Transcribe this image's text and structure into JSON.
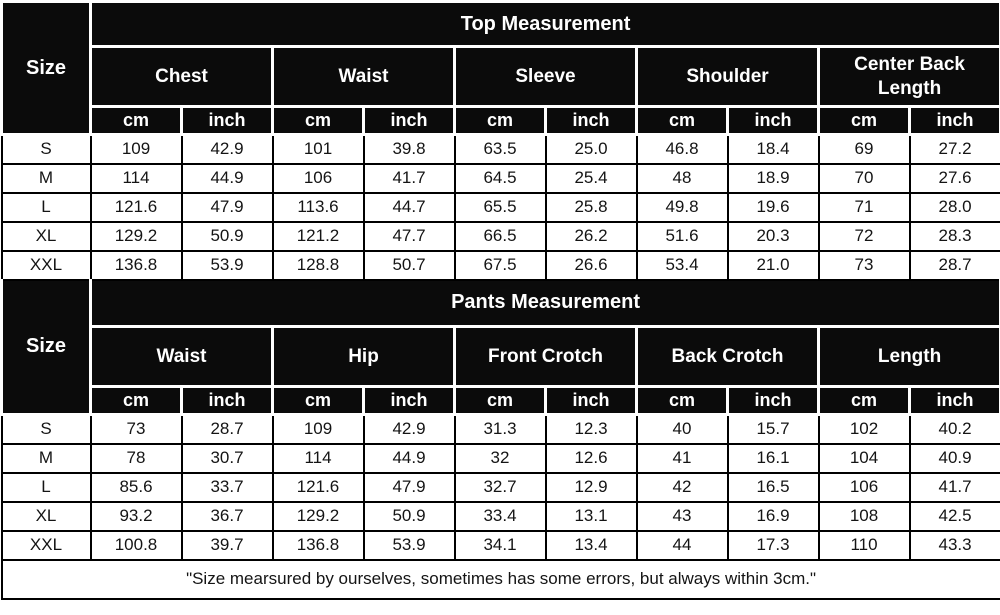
{
  "units": {
    "cm": "cm",
    "inch": "inch"
  },
  "sections": [
    {
      "title": "Top Measurement",
      "size_label": "Size",
      "groups": [
        "Chest",
        "Waist",
        "Sleeve",
        "Shoulder",
        "Center Back Length"
      ],
      "rows": [
        {
          "size": "S",
          "values": [
            "109",
            "42.9",
            "101",
            "39.8",
            "63.5",
            "25.0",
            "46.8",
            "18.4",
            "69",
            "27.2"
          ]
        },
        {
          "size": "M",
          "values": [
            "114",
            "44.9",
            "106",
            "41.7",
            "64.5",
            "25.4",
            "48",
            "18.9",
            "70",
            "27.6"
          ]
        },
        {
          "size": "L",
          "values": [
            "121.6",
            "47.9",
            "113.6",
            "44.7",
            "65.5",
            "25.8",
            "49.8",
            "19.6",
            "71",
            "28.0"
          ]
        },
        {
          "size": "XL",
          "values": [
            "129.2",
            "50.9",
            "121.2",
            "47.7",
            "66.5",
            "26.2",
            "51.6",
            "20.3",
            "72",
            "28.3"
          ]
        },
        {
          "size": "XXL",
          "values": [
            "136.8",
            "53.9",
            "128.8",
            "50.7",
            "67.5",
            "26.6",
            "53.4",
            "21.0",
            "73",
            "28.7"
          ]
        }
      ]
    },
    {
      "title": "Pants Measurement",
      "size_label": "Size",
      "groups": [
        "Waist",
        "Hip",
        "Front Crotch",
        "Back Crotch",
        "Length"
      ],
      "rows": [
        {
          "size": "S",
          "values": [
            "73",
            "28.7",
            "109",
            "42.9",
            "31.3",
            "12.3",
            "40",
            "15.7",
            "102",
            "40.2"
          ]
        },
        {
          "size": "M",
          "values": [
            "78",
            "30.7",
            "114",
            "44.9",
            "32",
            "12.6",
            "41",
            "16.1",
            "104",
            "40.9"
          ]
        },
        {
          "size": "L",
          "values": [
            "85.6",
            "33.7",
            "121.6",
            "47.9",
            "32.7",
            "12.9",
            "42",
            "16.5",
            "106",
            "41.7"
          ]
        },
        {
          "size": "XL",
          "values": [
            "93.2",
            "36.7",
            "129.2",
            "50.9",
            "33.4",
            "13.1",
            "43",
            "16.9",
            "108",
            "42.5"
          ]
        },
        {
          "size": "XXL",
          "values": [
            "100.8",
            "39.7",
            "136.8",
            "53.9",
            "34.1",
            "13.4",
            "44",
            "17.3",
            "110",
            "43.3"
          ]
        }
      ]
    }
  ],
  "footer": {
    "note": "\"Size mearsured by ourselves, sometimes has some errors, but always within 3cm.\""
  },
  "colors": {
    "header_bg": "#0b0b0b",
    "header_text": "#ffffff",
    "header_grid": "#ffffff",
    "cell_bg": "#ffffff",
    "cell_text": "#141414",
    "cell_grid": "#000000"
  },
  "chart_data": [
    {
      "type": "table",
      "title": "Top Measurement",
      "columns": [
        "Size",
        "Chest cm",
        "Chest inch",
        "Waist cm",
        "Waist inch",
        "Sleeve cm",
        "Sleeve inch",
        "Shoulder cm",
        "Shoulder inch",
        "Center Back Length cm",
        "Center Back Length inch"
      ],
      "rows": [
        [
          "S",
          109,
          42.9,
          101,
          39.8,
          63.5,
          25.0,
          46.8,
          18.4,
          69,
          27.2
        ],
        [
          "M",
          114,
          44.9,
          106,
          41.7,
          64.5,
          25.4,
          48,
          18.9,
          70,
          27.6
        ],
        [
          "L",
          121.6,
          47.9,
          113.6,
          44.7,
          65.5,
          25.8,
          49.8,
          19.6,
          71,
          28.0
        ],
        [
          "XL",
          129.2,
          50.9,
          121.2,
          47.7,
          66.5,
          26.2,
          51.6,
          20.3,
          72,
          28.3
        ],
        [
          "XXL",
          136.8,
          53.9,
          128.8,
          50.7,
          67.5,
          26.6,
          53.4,
          21.0,
          73,
          28.7
        ]
      ]
    },
    {
      "type": "table",
      "title": "Pants Measurement",
      "columns": [
        "Size",
        "Waist cm",
        "Waist inch",
        "Hip cm",
        "Hip inch",
        "Front Crotch cm",
        "Front Crotch inch",
        "Back Crotch cm",
        "Back Crotch inch",
        "Length cm",
        "Length inch"
      ],
      "rows": [
        [
          "S",
          73,
          28.7,
          109,
          42.9,
          31.3,
          12.3,
          40,
          15.7,
          102,
          40.2
        ],
        [
          "M",
          78,
          30.7,
          114,
          44.9,
          32,
          12.6,
          41,
          16.1,
          104,
          40.9
        ],
        [
          "L",
          85.6,
          33.7,
          121.6,
          47.9,
          32.7,
          12.9,
          42,
          16.5,
          106,
          41.7
        ],
        [
          "XL",
          93.2,
          36.7,
          129.2,
          50.9,
          33.4,
          13.1,
          43,
          16.9,
          108,
          42.5
        ],
        [
          "XXL",
          100.8,
          39.7,
          136.8,
          53.9,
          34.1,
          13.4,
          44,
          17.3,
          110,
          43.3
        ]
      ]
    }
  ]
}
